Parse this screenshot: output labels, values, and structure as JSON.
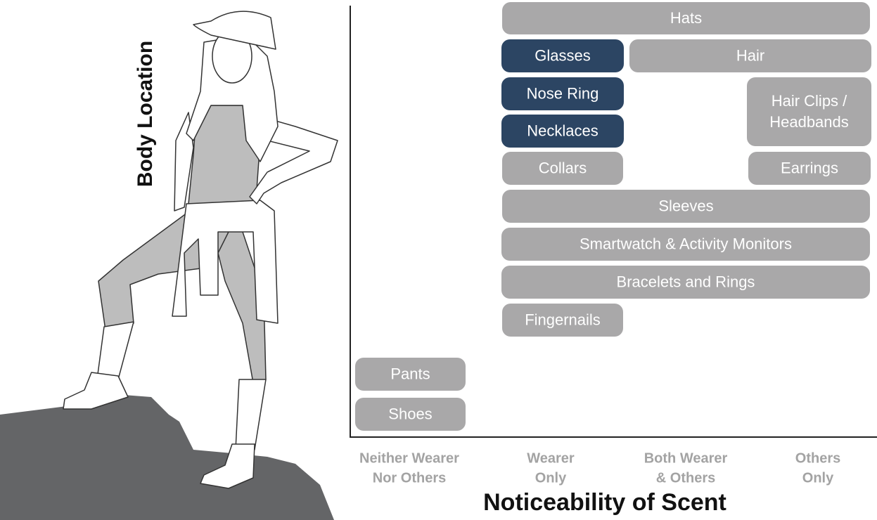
{
  "y_axis_label": "Body Location",
  "x_axis_label": "Noticeability of Scent",
  "x_categories": [
    {
      "lines": [
        "Neither Wearer",
        "Nor Others"
      ]
    },
    {
      "lines": [
        "Wearer",
        "Only"
      ]
    },
    {
      "lines": [
        "Both Wearer",
        "& Others"
      ]
    },
    {
      "lines": [
        "Others",
        "Only"
      ]
    }
  ],
  "items": [
    {
      "lines": [
        "Hats"
      ],
      "color": "#a9a8a9"
    },
    {
      "lines": [
        "Glasses"
      ],
      "color": "#2c4563"
    },
    {
      "lines": [
        "Hair"
      ],
      "color": "#a9a8a9"
    },
    {
      "lines": [
        "Nose Ring"
      ],
      "color": "#2c4563"
    },
    {
      "lines": [
        "Hair Clips /",
        "Headbands"
      ],
      "color": "#a9a8a9"
    },
    {
      "lines": [
        "Necklaces"
      ],
      "color": "#2c4563"
    },
    {
      "lines": [
        "Collars"
      ],
      "color": "#a9a8a9"
    },
    {
      "lines": [
        "Earrings"
      ],
      "color": "#a9a8a9"
    },
    {
      "lines": [
        "Sleeves"
      ],
      "color": "#a9a8a9"
    },
    {
      "lines": [
        "Smartwatch & Activity Monitors"
      ],
      "color": "#a9a8a9"
    },
    {
      "lines": [
        "Bracelets and Rings"
      ],
      "color": "#a9a8a9"
    },
    {
      "lines": [
        "Fingernails"
      ],
      "color": "#a9a8a9"
    },
    {
      "lines": [
        "Pants"
      ],
      "color": "#a9a8a9"
    },
    {
      "lines": [
        "Shoes"
      ],
      "color": "#a9a8a9"
    }
  ]
}
